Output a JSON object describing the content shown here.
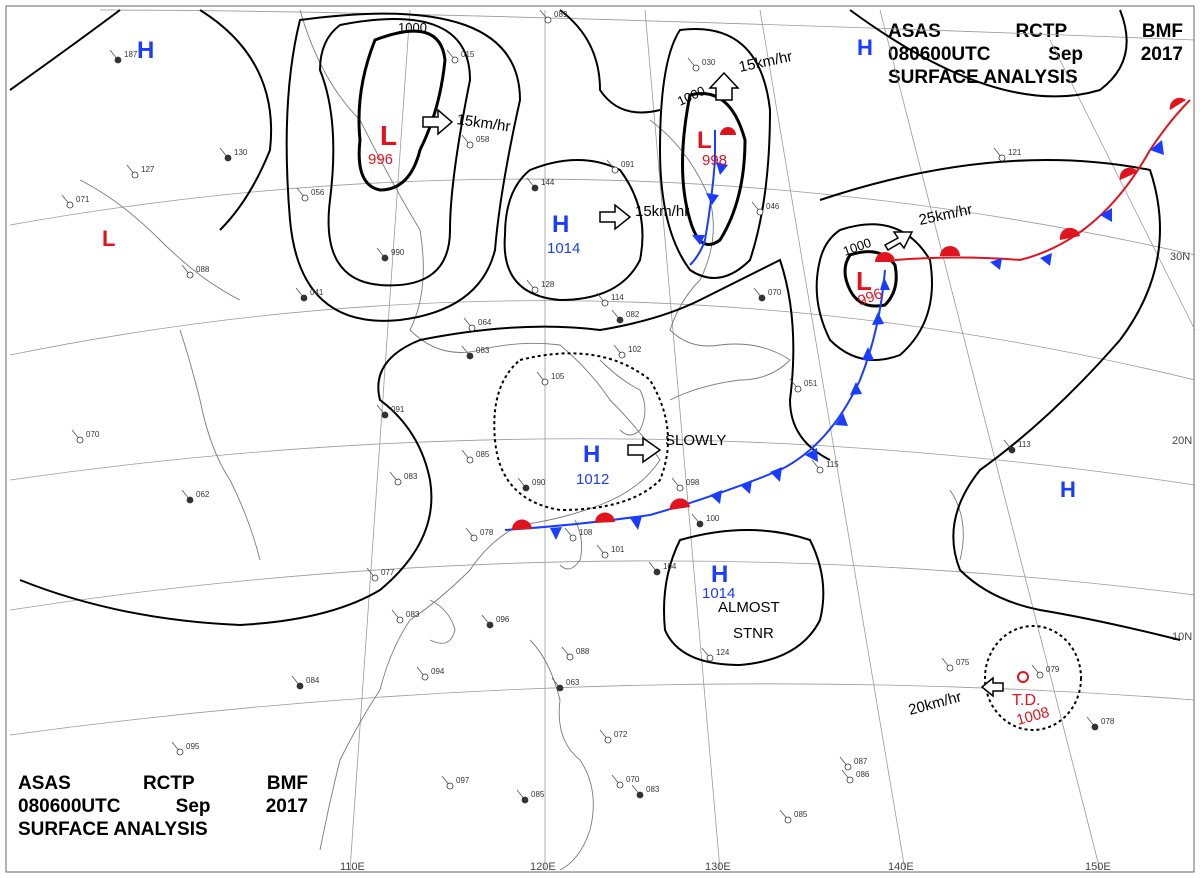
{
  "title": {
    "line1": [
      "ASAS",
      "RCTP",
      "BMF"
    ],
    "line2": [
      "080600UTC",
      "Sep",
      "2017"
    ],
    "line3": "SURFACE ANALYSIS"
  },
  "latitude_labels": [
    "30N",
    "20N",
    "10N"
  ],
  "longitude_labels": [
    "110E",
    "120E",
    "130E",
    "140E",
    "150E"
  ],
  "isobar_labels": [
    "1000",
    "1000",
    "1000"
  ],
  "highs": [
    {
      "symbol": "H",
      "pressure": ""
    },
    {
      "symbol": "H",
      "pressure": "1014"
    },
    {
      "symbol": "H",
      "pressure": "1012"
    },
    {
      "symbol": "H",
      "pressure": "1014"
    },
    {
      "symbol": "H",
      "pressure": ""
    },
    {
      "symbol": "H",
      "pressure": ""
    }
  ],
  "lows": [
    {
      "symbol": "L",
      "pressure": "996"
    },
    {
      "symbol": "L",
      "pressure": "998"
    },
    {
      "symbol": "L",
      "pressure": "996"
    },
    {
      "symbol": "L",
      "pressure": ""
    }
  ],
  "tropical_depression": {
    "label": "T.D.",
    "pressure": "1008"
  },
  "movements": [
    "15km/hr",
    "15km/hr",
    "15km/hr",
    "25km/hr",
    "SLOWLY",
    "20km/hr"
  ],
  "stationary_note": [
    "ALMOST",
    "STNR"
  ],
  "colors": {
    "high": "#1a3cff",
    "low": "#e0141e",
    "isobar": "#000000",
    "coast": "#777777",
    "grid": "#999999"
  },
  "stations": [
    "187",
    "127",
    "071",
    "130",
    "056",
    "015",
    "990",
    "058",
    "089",
    "144",
    "091",
    "088",
    "041",
    "030",
    "046",
    "070",
    "121",
    "064",
    "083",
    "128",
    "114",
    "082",
    "102",
    "105",
    "091",
    "085",
    "083",
    "090",
    "078",
    "098",
    "100",
    "108",
    "101",
    "104",
    "077",
    "083",
    "096",
    "124",
    "088",
    "063",
    "072",
    "094",
    "084",
    "095",
    "097",
    "085",
    "087",
    "070",
    "083",
    "051",
    "115",
    "113",
    "086",
    "085",
    "078",
    "079",
    "075",
    "062",
    "070"
  ]
}
